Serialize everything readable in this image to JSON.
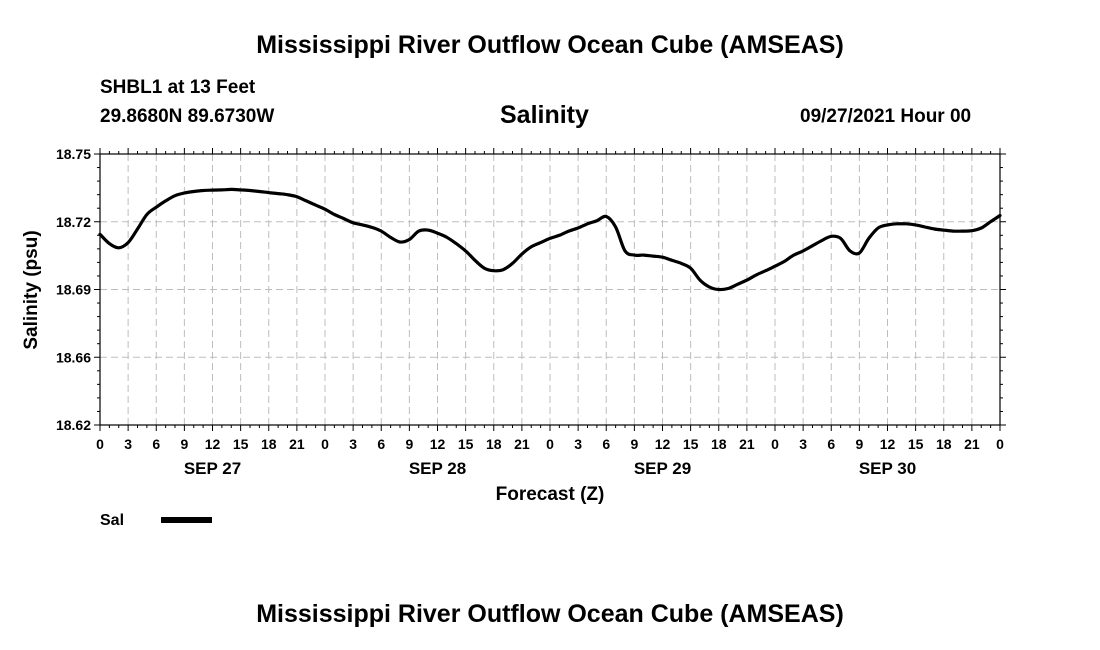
{
  "header": {
    "title": "Mississippi River Outflow Ocean Cube (AMSEAS)",
    "station": "SHBL1 at 13 Feet",
    "coords": "29.8680N  89.6730W",
    "variable": "Salinity",
    "date": "09/27/2021 Hour 00"
  },
  "footer": {
    "title": "Mississippi River Outflow Ocean Cube (AMSEAS)"
  },
  "chart_data": {
    "type": "line",
    "title": "Salinity",
    "xlabel": "Forecast (Z)",
    "ylabel": "Salinity (psu)",
    "ylim": [
      18.62,
      18.75
    ],
    "yticks": [
      "18.75",
      "18.72",
      "18.69",
      "18.66",
      "18.62"
    ],
    "xlim": [
      0,
      96
    ],
    "xtick_step_hours": 3,
    "xtick_labels": [
      "0",
      "3",
      "6",
      "9",
      "12",
      "15",
      "18",
      "21",
      "0",
      "3",
      "6",
      "9",
      "12",
      "15",
      "18",
      "21",
      "0",
      "3",
      "6",
      "9",
      "12",
      "15",
      "18",
      "21",
      "0",
      "3",
      "6",
      "9",
      "12",
      "15",
      "18",
      "21",
      "0"
    ],
    "day_labels": [
      {
        "label": "SEP 27",
        "hour": 12
      },
      {
        "label": "SEP 28",
        "hour": 36
      },
      {
        "label": "SEP 29",
        "hour": 60
      },
      {
        "label": "SEP 30",
        "hour": 84
      }
    ],
    "grid": true,
    "series": [
      {
        "name": "Sal",
        "color": "#000000",
        "x": [
          0,
          1,
          2,
          3,
          4,
          5,
          6,
          7,
          8,
          9,
          10,
          11,
          12,
          13,
          14,
          15,
          16,
          17,
          18,
          19,
          20,
          21,
          22,
          23,
          24,
          25,
          26,
          27,
          28,
          29,
          30,
          31,
          32,
          33,
          34,
          35,
          36,
          37,
          38,
          39,
          40,
          41,
          42,
          43,
          44,
          45,
          46,
          47,
          48,
          49,
          50,
          51,
          52,
          53,
          54,
          55,
          56,
          57,
          58,
          59,
          60,
          61,
          62,
          63,
          64,
          65,
          66,
          67,
          68,
          69,
          70,
          71,
          72,
          73,
          74,
          75,
          76,
          77,
          78,
          79,
          80,
          81,
          82,
          83,
          84,
          85,
          86,
          87,
          88,
          89,
          90,
          91,
          92,
          93,
          94,
          95,
          96
        ],
        "values": [
          18.7115,
          18.707,
          18.705,
          18.7075,
          18.714,
          18.721,
          18.7245,
          18.7275,
          18.73,
          18.7313,
          18.732,
          18.7325,
          18.7327,
          18.7328,
          18.733,
          18.7328,
          18.7325,
          18.732,
          18.7315,
          18.731,
          18.7305,
          18.7295,
          18.7275,
          18.7255,
          18.7235,
          18.721,
          18.719,
          18.717,
          18.716,
          18.7148,
          18.713,
          18.71,
          18.7078,
          18.709,
          18.713,
          18.7135,
          18.712,
          18.71,
          18.707,
          18.7035,
          18.699,
          18.6952,
          18.694,
          18.6945,
          18.6975,
          18.702,
          18.7055,
          18.7075,
          18.7095,
          18.711,
          18.713,
          18.7145,
          18.7165,
          18.718,
          18.72,
          18.715,
          18.7035,
          18.7015,
          18.7015,
          18.701,
          18.7005,
          18.699,
          18.6975,
          18.6952,
          18.6895,
          18.6862,
          18.685,
          18.6855,
          18.6875,
          18.6895,
          18.692,
          18.694,
          18.6962,
          18.6985,
          18.7015,
          18.7035,
          18.706,
          18.7085,
          18.7105,
          18.7095,
          18.7035,
          18.7025,
          18.7095,
          18.7145,
          18.716,
          18.7165,
          18.7165,
          18.716,
          18.715,
          18.714,
          18.7135,
          18.713,
          18.713,
          18.7132,
          18.7145,
          18.7175,
          18.7205
        ]
      }
    ],
    "legend": "bottom-left"
  }
}
